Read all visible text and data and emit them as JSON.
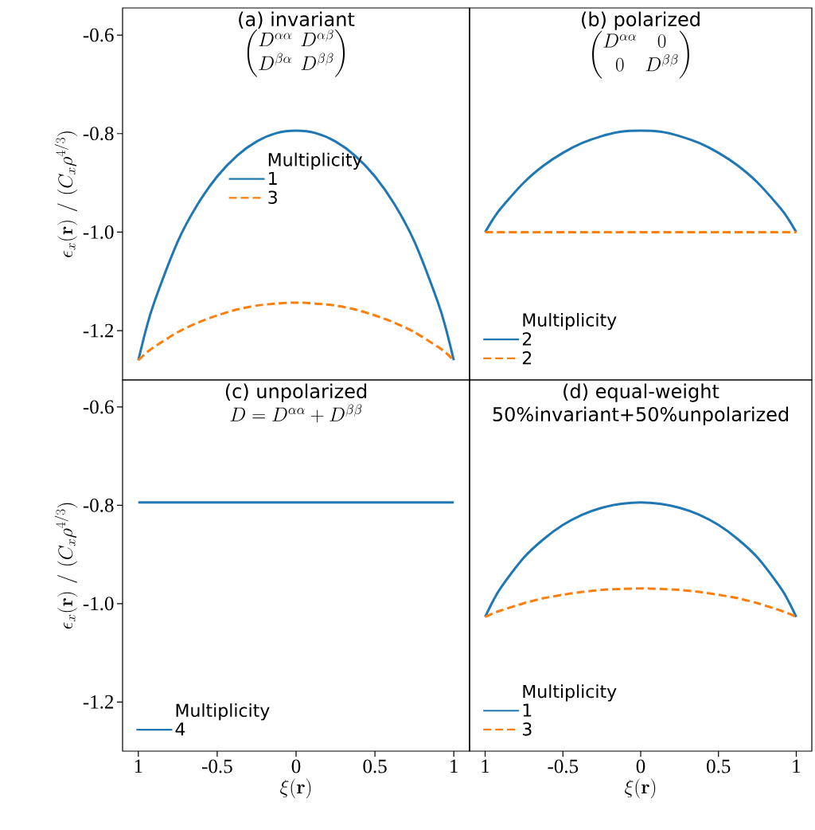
{
  "chart_data": [
    {
      "type": "line",
      "title": "(a) invariant",
      "subtitle": "\\begin{pmatrix}D^{\\alpha\\alpha} & D^{\\alpha\\beta}\\\\ D^{\\beta\\alpha} & D^{\\beta\\beta}\\end{pmatrix}",
      "ylabel": "\\epsilon_x(\\mathbf{r})\\ /\\ (C_x\\rho^{4/3})",
      "legend_title": "Multiplicity",
      "legend": "top",
      "tick_labels": "y",
      "x": [
        -1,
        -0.95,
        -0.9,
        -0.75,
        -0.625,
        -0.5,
        -0.375,
        -0.25,
        -0.125,
        0,
        0.125,
        0.25,
        0.375,
        0.5,
        0.625,
        0.75,
        0.9,
        0.95,
        1
      ],
      "xlim": [
        -1.1,
        1.1
      ],
      "ylim": [
        -1.3,
        -0.545
      ],
      "yticks": [
        -1.2,
        {
          "value": -1.0,
          "label": "-1.0"
        },
        -0.8,
        -0.6
      ],
      "series": [
        {
          "name": "1",
          "color": "#1f77b4",
          "line_style": "solid",
          "values": [
            -1.26,
            -1.196,
            -1.143,
            -1.019,
            -0.944,
            -0.887,
            -0.845,
            -0.816,
            -0.799,
            -0.794,
            -0.799,
            -0.816,
            -0.845,
            -0.887,
            -0.944,
            -1.019,
            -1.143,
            -1.196,
            -1.26
          ]
        },
        {
          "name": "3",
          "color": "#ff7f0e",
          "line_style": "dashed",
          "values": [
            -1.26,
            -1.245,
            -1.233,
            -1.203,
            -1.184,
            -1.169,
            -1.157,
            -1.149,
            -1.145,
            -1.143,
            -1.145,
            -1.149,
            -1.157,
            -1.169,
            -1.184,
            -1.203,
            -1.233,
            -1.245,
            -1.26
          ]
        }
      ]
    },
    {
      "type": "line",
      "title": "(b) polarized",
      "subtitle": "\\begin{pmatrix}D^{\\alpha\\alpha} & 0\\\\ 0 & D^{\\beta\\beta}\\end{pmatrix}",
      "legend_title": "Multiplicity",
      "legend": "bottom left",
      "tick_labels": false,
      "x": [
        -1,
        -0.95,
        -0.9,
        -0.75,
        -0.625,
        -0.5,
        -0.375,
        -0.25,
        -0.125,
        0,
        0.125,
        0.25,
        0.375,
        0.5,
        0.625,
        0.75,
        0.9,
        0.95,
        1
      ],
      "xlim": [
        -1.1,
        1.1
      ],
      "ylim": [
        -1.3,
        -0.545
      ],
      "series": [
        {
          "name": "2",
          "color": "#1f77b4",
          "line_style": "solid",
          "values": [
            -1.0,
            -0.974,
            -0.952,
            -0.899,
            -0.865,
            -0.839,
            -0.819,
            -0.805,
            -0.796,
            -0.794,
            -0.796,
            -0.805,
            -0.819,
            -0.839,
            -0.865,
            -0.899,
            -0.952,
            -0.974,
            -1.0
          ]
        },
        {
          "name": "2",
          "color": "#ff7f0e",
          "line_style": "dashed",
          "x": [
            -1,
            1
          ],
          "values": [
            -1.0,
            -1.0
          ]
        }
      ]
    },
    {
      "type": "line",
      "title": "(c) unpolarized",
      "subtitle": "D = D^{\\alpha\\alpha} + D^{\\beta\\beta}",
      "xlabel": "\\xi(\\mathbf{r})",
      "ylabel": "\\epsilon_x(\\mathbf{r})\\ /\\ (C_x\\rho^{4/3})",
      "legend_title": "Multiplicity",
      "legend": "bottom left",
      "x": [
        -1,
        1
      ],
      "xlim": [
        -1.1,
        1.1
      ],
      "ylim": [
        -1.3,
        -0.545
      ],
      "xticks": [
        {
          "value": -1,
          "label": "1"
        },
        -0.5,
        0,
        0.5,
        1
      ],
      "yticks": [
        -1.2,
        {
          "value": -1.0,
          "label": "-1.0"
        },
        -0.8,
        -0.6
      ],
      "series": [
        {
          "name": "4",
          "color": "#1f77b4",
          "line_style": "solid",
          "values": [
            -0.794,
            -0.794
          ]
        }
      ]
    },
    {
      "type": "line",
      "title": "(d) equal-weight",
      "subtitle": "50%invariant+50%unpolarized",
      "xlabel": "\\xi(\\mathbf{r})",
      "legend_title": "Multiplicity",
      "legend": "bottom left",
      "tick_labels": "x",
      "x": [
        -1,
        -0.95,
        -0.9,
        -0.75,
        -0.625,
        -0.5,
        -0.375,
        -0.25,
        -0.125,
        0,
        0.125,
        0.25,
        0.375,
        0.5,
        0.625,
        0.75,
        0.9,
        0.95,
        1
      ],
      "xlim": [
        -1.1,
        1.1
      ],
      "ylim": [
        -1.3,
        -0.545
      ],
      "xticks": [
        {
          "value": -1,
          "label": "1"
        },
        -0.5,
        0,
        0.5,
        1
      ],
      "series": [
        {
          "name": "1",
          "color": "#1f77b4",
          "line_style": "solid",
          "values": [
            -1.027,
            -0.995,
            -0.968,
            -0.906,
            -0.869,
            -0.84,
            -0.819,
            -0.805,
            -0.797,
            -0.794,
            -0.797,
            -0.805,
            -0.819,
            -0.84,
            -0.869,
            -0.906,
            -0.968,
            -0.995,
            -1.027
          ]
        },
        {
          "name": "3",
          "color": "#ff7f0e",
          "line_style": "dashed",
          "values": [
            -1.027,
            -1.02,
            -1.014,
            -0.999,
            -0.989,
            -0.982,
            -0.976,
            -0.972,
            -0.97,
            -0.969,
            -0.97,
            -0.972,
            -0.976,
            -0.982,
            -0.989,
            -0.999,
            -1.014,
            -1.02,
            -1.027
          ]
        }
      ]
    }
  ]
}
